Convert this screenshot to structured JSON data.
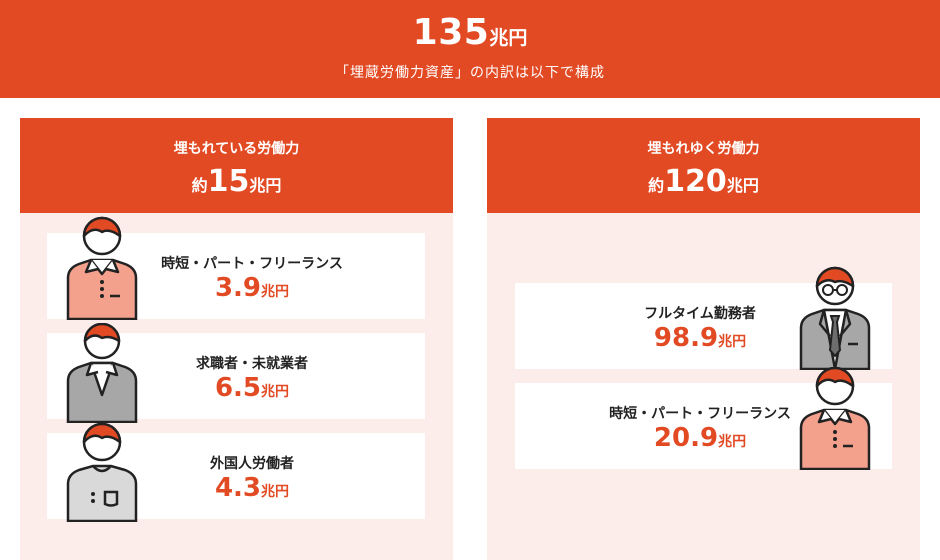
{
  "header": {
    "total_value": "135",
    "total_unit": "兆円",
    "subtitle": "「埋蔵労働力資産」の内訳は以下で構成"
  },
  "left_panel": {
    "title": "埋もれている労働力",
    "amount_prefix": "約",
    "amount_value": "15",
    "amount_unit": "兆円",
    "items": [
      {
        "label": "時短・パート・フリーランス",
        "value": "3.9",
        "unit": "兆円"
      },
      {
        "label": "求職者・未就業者",
        "value": "6.5",
        "unit": "兆円"
      },
      {
        "label": "外国人労働者",
        "value": "4.3",
        "unit": "兆円"
      }
    ]
  },
  "right_panel": {
    "title": "埋もれゆく労働力",
    "amount_prefix": "約",
    "amount_value": "120",
    "amount_unit": "兆円",
    "items": [
      {
        "label": "フルタイム勤務者",
        "value": "98.9",
        "unit": "兆円"
      },
      {
        "label": "時短・パート・フリーランス",
        "value": "20.9",
        "unit": "兆円"
      }
    ]
  },
  "colors": {
    "accent": "#e24a24",
    "panel_bg": "#fcecea",
    "shirt_salmon": "#f3a08c",
    "shirt_gray": "#a7a7a7",
    "shirt_light_gray": "#d9d9d9",
    "outline": "#222222"
  },
  "icons": [
    "person-salmon-shirt-icon",
    "person-gray-sweater-icon",
    "person-tshirt-icon",
    "person-suit-glasses-icon"
  ]
}
